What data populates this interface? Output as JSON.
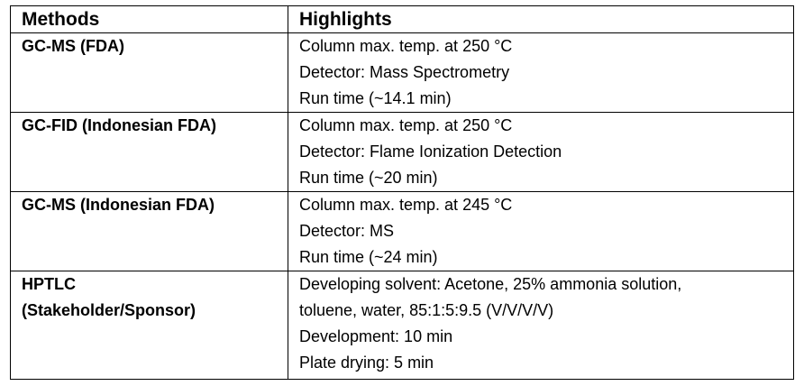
{
  "table": {
    "header": [
      "Methods",
      "Highlights"
    ],
    "rows": [
      {
        "method": [
          "GC-MS (FDA)"
        ],
        "highlights": [
          "Column max. temp. at 250 °C",
          "Detector: Mass Spectrometry",
          "Run time (~14.1 min)"
        ]
      },
      {
        "method": [
          "GC-FID (Indonesian FDA)"
        ],
        "highlights": [
          "Column max. temp. at 250 °C",
          "Detector: Flame Ionization Detection",
          "Run time (~20 min)"
        ]
      },
      {
        "method": [
          "GC-MS (Indonesian FDA)"
        ],
        "highlights": [
          "Column max. temp. at 245 °C",
          "Detector: MS",
          "Run time (~24 min)"
        ]
      },
      {
        "method": [
          "HPTLC",
          "(Stakeholder/Sponsor)"
        ],
        "highlights": [
          "Developing solvent: Acetone, 25% ammonia solution,",
          "toluene, water, 85:1:5:9.5 (V/V/V/V)",
          "Development: 10 min",
          "Plate drying: 5 min"
        ]
      }
    ]
  }
}
